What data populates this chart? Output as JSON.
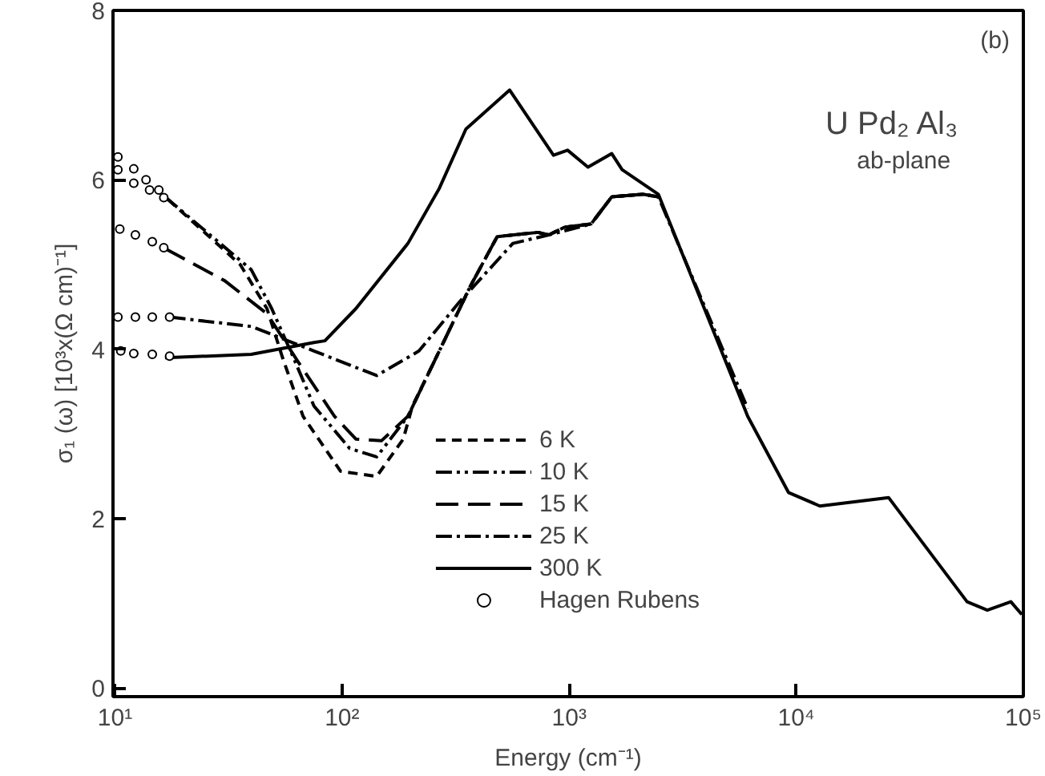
{
  "chart_data": {
    "type": "line",
    "xlabel": "Energy (cm⁻¹)",
    "ylabel": "σ₁ (ω) [10³x(Ω cm)⁻¹]",
    "annotations": [
      "(b)",
      "U Pd₂ Al₃",
      "ab-plane"
    ],
    "log": "x",
    "xlim": [
      9.8,
      100000
    ],
    "ylim": [
      -0.1,
      8
    ],
    "xticks": [
      {
        "value": 10,
        "label": "10¹"
      },
      {
        "value": 100,
        "label": "10²"
      },
      {
        "value": 1000,
        "label": "10³"
      },
      {
        "value": 10000,
        "label": "10⁴"
      },
      {
        "value": 100000,
        "label": "10⁵"
      }
    ],
    "yticks": [
      0,
      2,
      4,
      6,
      8
    ],
    "grid": false,
    "legend": "bottom center",
    "series": [
      {
        "name": "6 K",
        "color": "#000000",
        "line_style": "dashed",
        "x": [
          17.1,
          35.6,
          46.7,
          54.7,
          67.3,
          98.5,
          142,
          186,
          204,
          268,
          368,
          482,
          728,
          813,
          953,
          1250,
          1540,
          2110,
          2470
        ],
        "values": [
          5.77,
          5.0,
          4.48,
          3.9,
          3.21,
          2.56,
          2.5,
          2.94,
          3.33,
          3.98,
          4.75,
          5.33,
          5.38,
          5.35,
          5.44,
          5.48,
          5.8,
          5.83,
          5.8
        ]
      },
      {
        "name": "10 K",
        "color": "#000000",
        "line_style": "dashdotdot",
        "x": [
          16.6,
          39.8,
          49,
          61.1,
          75.2,
          108,
          142,
          195,
          268,
          368,
          482,
          728,
          813,
          953,
          1250,
          1540,
          2110,
          2470
        ],
        "values": [
          5.8,
          4.94,
          4.48,
          3.9,
          3.33,
          2.83,
          2.73,
          3.21,
          3.98,
          4.75,
          5.33,
          5.38,
          5.35,
          5.44,
          5.48,
          5.8,
          5.83,
          5.8
        ]
      },
      {
        "name": "15 K",
        "color": "#000000",
        "line_style": "longdash",
        "x": [
          16.6,
          30.4,
          46.7,
          64.1,
          92.5,
          115,
          149,
          195,
          268,
          368,
          482,
          728,
          813,
          953,
          1250,
          1540,
          2110,
          2470
        ],
        "values": [
          5.19,
          4.81,
          4.42,
          3.85,
          3.21,
          2.94,
          2.92,
          3.21,
          3.98,
          4.75,
          5.33,
          5.38,
          5.35,
          5.44,
          5.48,
          5.8,
          5.83,
          5.8
        ]
      },
      {
        "name": "25 K",
        "color": "#000000",
        "line_style": "dashdot",
        "x": [
          17.4,
          39.8,
          75.2,
          142,
          218,
          329,
          565,
          813,
          1250,
          1540,
          2110,
          2470,
          6110
        ],
        "values": [
          4.38,
          4.27,
          3.98,
          3.69,
          3.98,
          4.56,
          5.25,
          5.35,
          5.48,
          5.8,
          5.83,
          5.8,
          3.3
        ]
      },
      {
        "name": "300 K",
        "color": "#000000",
        "line_style": "solid",
        "x": [
          16.6,
          39.8,
          75.2,
          84,
          115,
          195,
          268,
          351,
          547,
          853,
          984,
          1210,
          1540,
          1710,
          2470,
          6110,
          9240,
          12700,
          25500,
          56500,
          69400,
          88100,
          98400
        ],
        "values": [
          3.9,
          3.94,
          4.08,
          4.1,
          4.48,
          5.25,
          5.9,
          6.6,
          7.06,
          6.29,
          6.35,
          6.15,
          6.31,
          6.12,
          5.83,
          3.21,
          2.31,
          2.15,
          2.25,
          1.02,
          0.92,
          1.02,
          0.87
        ]
      },
      {
        "name": "Hagen Rubens",
        "type": "scatter",
        "marker": "circle",
        "color": "#000000",
        "x": [
          10.3,
          12.1,
          13.7,
          15.6,
          10.3,
          12.1,
          14.2,
          16.4,
          10.5,
          12.3,
          14.6,
          16.4,
          10.3,
          12.3,
          14.6,
          17.4,
          10.6,
          12.1,
          14.6,
          17.4
        ],
        "values": [
          6.27,
          6.13,
          6.0,
          5.88,
          6.12,
          5.96,
          5.88,
          5.79,
          5.42,
          5.35,
          5.27,
          5.2,
          4.38,
          4.38,
          4.38,
          4.38,
          3.98,
          3.95,
          3.94,
          3.92
        ]
      }
    ]
  }
}
